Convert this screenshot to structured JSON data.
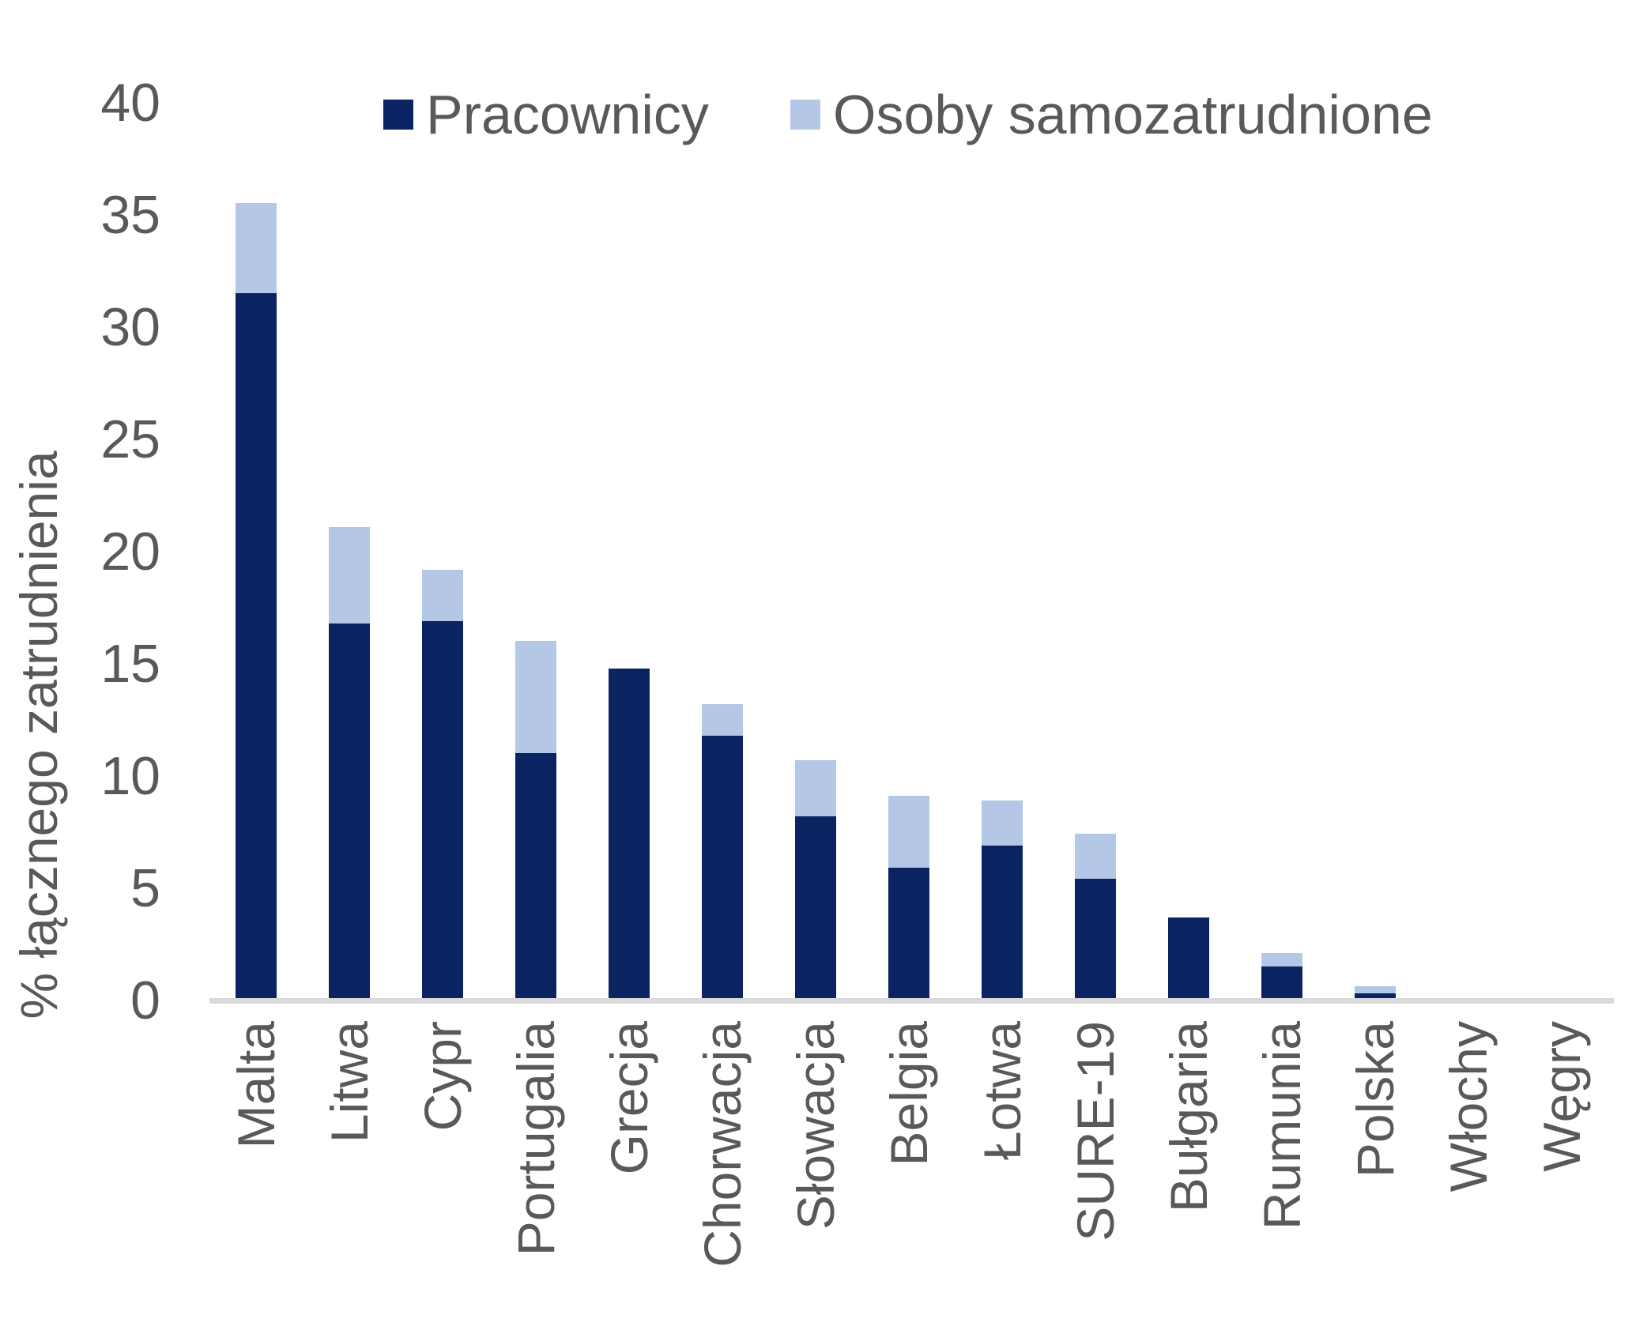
{
  "chart_data": {
    "type": "bar",
    "stacked": true,
    "title": "",
    "ylabel": "% łącznego zatrudnienia",
    "xlabel": "",
    "ylim": [
      0,
      40
    ],
    "yticks": [
      0,
      5,
      10,
      15,
      20,
      25,
      30,
      35,
      40
    ],
    "grid": false,
    "legend_position": "top",
    "categories": [
      "Malta",
      "Litwa",
      "Cypr",
      "Portugalia",
      "Grecja",
      "Chorwacja",
      "Słowacja",
      "Belgia",
      "Łotwa",
      "SURE-19",
      "Bułgaria",
      "Rumunia",
      "Polska",
      "Włochy",
      "Węgry"
    ],
    "series": [
      {
        "name": "Pracownicy",
        "color": "#0a2462",
        "values": [
          31.4,
          16.7,
          16.8,
          10.9,
          14.7,
          11.7,
          8.1,
          5.8,
          6.8,
          5.3,
          3.6,
          1.4,
          0.2,
          0,
          0
        ]
      },
      {
        "name": "Osoby samozatrudnione",
        "color": "#b4c7e7",
        "values": [
          4.0,
          4.3,
          2.3,
          5.0,
          0,
          1.4,
          2.5,
          3.2,
          2.0,
          2.0,
          0,
          0.6,
          0.3,
          0,
          0
        ]
      }
    ]
  },
  "colors": {
    "axis_line": "#d9d9d9",
    "text": "#595959",
    "background": "#ffffff"
  }
}
